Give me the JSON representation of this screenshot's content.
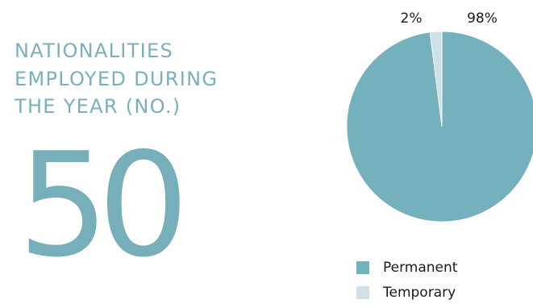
{
  "headline": {
    "lines": [
      "NATIONALITIES",
      "EMPLOYED DURING",
      "THE YEAR (NO.)"
    ]
  },
  "big_number": "50",
  "colors": {
    "headline": "#79b0bc",
    "big_number": "#76afba",
    "permanent": "#75b1bc",
    "temporary": "#cfe1e6",
    "label_text": "#1a1a1a"
  },
  "chart_data": {
    "type": "pie",
    "title": "",
    "labels": [
      "Permanent",
      "Temporary"
    ],
    "values": [
      98,
      2
    ],
    "data_labels": [
      "98%",
      "2%"
    ],
    "colors": [
      "#75b1bc",
      "#cfe1e6"
    ],
    "start": "12 o'clock, clockwise",
    "legend_position": "bottom"
  }
}
